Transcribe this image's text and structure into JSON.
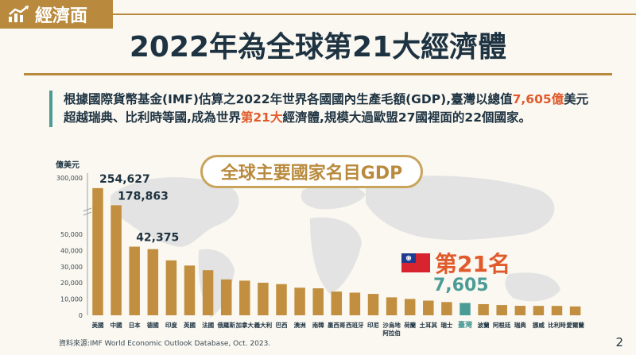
{
  "header": {
    "badge_label": "經濟面",
    "title": "2022年為全球第21大經濟體"
  },
  "intro": {
    "part1": "根據國際貨幣基金(IMF)估算之2022年世界各國國內生產毛額(GDP),臺灣以總值",
    "highlight1": "7,605億",
    "part2": "美元超越瑞典、比利時等國,成為世界",
    "highlight2": "第21大",
    "part3": "經濟體,規模大過歐盟27國裡面的22個國家。"
  },
  "chart_title": "全球主要國家名目GDP",
  "unit_label": "億美元",
  "callout": {
    "rank_label": "第21名",
    "value_label": "7,605"
  },
  "source": "資料來源:IMF World Economic Outlook Database, Oct. 2023.",
  "page_number": "2",
  "colors": {
    "bar": "#c18f3f",
    "highlight_bar": "#4b9c96",
    "accent": "#e05a2b",
    "navy": "#1e3342"
  },
  "chart_data": {
    "type": "bar",
    "title": "全球主要國家名目GDP",
    "ylabel": "億美元",
    "y_axis": "broken",
    "yticks_lower": [
      0,
      10000,
      20000,
      30000,
      40000,
      50000
    ],
    "ytick_labels": [
      "0",
      "10,000",
      "20,000",
      "30,000",
      "40,000",
      "50,000",
      "300,000"
    ],
    "categories": [
      "美國",
      "中國",
      "日本",
      "德國",
      "印度",
      "英國",
      "法國",
      "俄羅斯",
      "加拿大",
      "義大利",
      "巴西",
      "澳洲",
      "南韓",
      "墨西哥",
      "西班牙",
      "印尼",
      "沙烏地阿拉伯",
      "荷蘭",
      "土耳其",
      "瑞士",
      "臺灣",
      "波蘭",
      "阿根廷",
      "瑞典",
      "挪威",
      "比利時",
      "愛爾蘭"
    ],
    "values": [
      254627,
      178863,
      42375,
      40820,
      33897,
      30707,
      27829,
      22154,
      21379,
      20103,
      19247,
      17023,
      16652,
      14653,
      13975,
      13191,
      11083,
      10092,
      9058,
      8180,
      7605,
      6881,
      6327,
      5855,
      5792,
      5784,
      5455
    ],
    "data_labels": {
      "0": "254,627",
      "1": "178,863",
      "2": "42,375"
    },
    "highlight_index": 20
  }
}
